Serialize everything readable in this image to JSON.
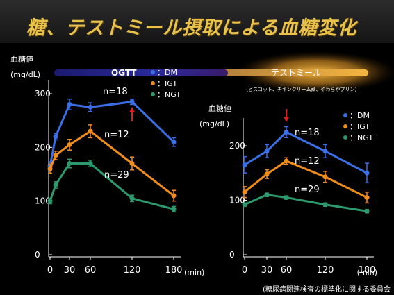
{
  "page": {
    "title": "糖、テストミール摂取による血糖変化",
    "source": "(糖尿病関連検査の標準化に関する委員会"
  },
  "colors": {
    "DM": "#3b6fe6",
    "IGT": "#f08c1a",
    "NGT": "#2d9a6e",
    "title": "#e8c24a",
    "arrow": "#e02020"
  },
  "chart_data": [
    {
      "type": "line",
      "title": "OGTT",
      "ylabel_line1": "血糖値",
      "ylabel_line2": "(mg/dL)",
      "xunit": "(min)",
      "ylim": [
        0,
        320
      ],
      "yticks": [
        0,
        100,
        200,
        300
      ],
      "xticks": [
        0,
        30,
        60,
        120,
        180
      ],
      "x": [
        0,
        15,
        30,
        60,
        120,
        180
      ],
      "series": [
        {
          "name": "DM",
          "label": "：DM",
          "n_label": "n=18",
          "values": [
            165,
            220,
            280,
            275,
            285,
            210
          ],
          "err": [
            8,
            6,
            10,
            8,
            5,
            8
          ]
        },
        {
          "name": "IGT",
          "label": "：IGT",
          "n_label": "n=12",
          "values": [
            160,
            185,
            205,
            230,
            170,
            110
          ],
          "err": [
            8,
            8,
            10,
            12,
            12,
            10
          ]
        },
        {
          "name": "NGT",
          "label": "：NGT",
          "n_label": "n=29",
          "values": [
            100,
            130,
            170,
            170,
            105,
            85
          ],
          "err": [
            5,
            6,
            8,
            6,
            6,
            5
          ]
        }
      ],
      "arrow_label_x": 120
    },
    {
      "type": "line",
      "title": "テストミール",
      "subtitle": "（ビスコット、チキンクリーム煮、やわらかプリン）",
      "ylabel_line1": "血糖値",
      "ylabel_line2": "(mg/dL)",
      "xunit": "(min)",
      "ylim": [
        0,
        260
      ],
      "yticks": [
        0,
        100,
        200
      ],
      "xticks": [
        0,
        30,
        60,
        120,
        180
      ],
      "x": [
        0,
        30,
        60,
        120,
        180
      ],
      "series": [
        {
          "name": "DM",
          "label": "：DM",
          "n_label": "n=18",
          "values": [
            165,
            190,
            225,
            190,
            150
          ],
          "err": [
            15,
            12,
            10,
            12,
            18
          ]
        },
        {
          "name": "IGT",
          "label": "：IGT",
          "n_label": "n=12",
          "values": [
            115,
            148,
            172,
            143,
            105
          ],
          "err": [
            10,
            8,
            6,
            10,
            10
          ]
        },
        {
          "name": "NGT",
          "label": "：NGT",
          "n_label": "n=29",
          "values": [
            92,
            110,
            105,
            92,
            80
          ],
          "err": [
            3,
            3,
            3,
            3,
            3
          ]
        }
      ],
      "arrow_label_x": 60
    }
  ]
}
